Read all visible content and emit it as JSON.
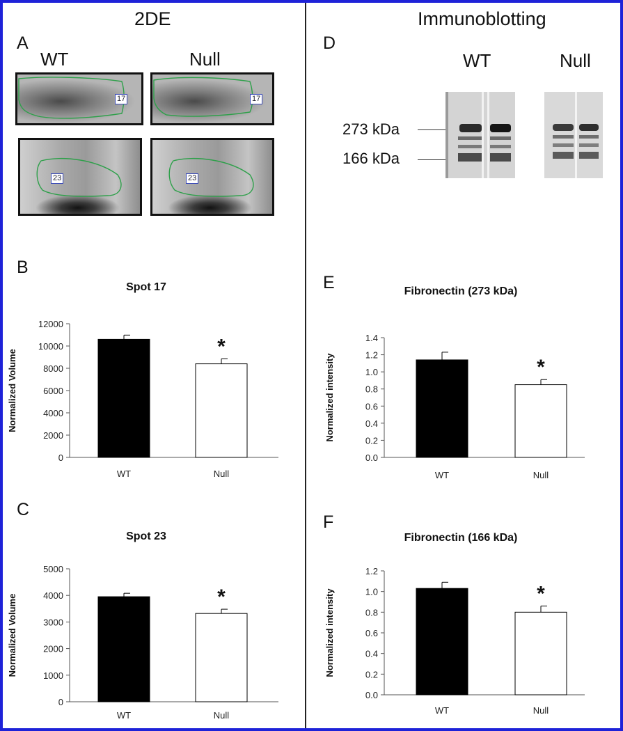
{
  "left_title": "2DE",
  "right_title": "Immunoblotting",
  "panel_labels": {
    "A": "A",
    "B": "B",
    "C": "C",
    "D": "D",
    "E": "E",
    "F": "F"
  },
  "gel_labels": {
    "wt": "WT",
    "null": "Null"
  },
  "spot_tags": {
    "spot17": "17",
    "spot23": "23"
  },
  "blot_markers": {
    "upper": "273 kDa",
    "lower": "166 kDa"
  },
  "chart_data": [
    {
      "panel": "B",
      "type": "bar",
      "title": "Spot 17",
      "ylabel": "Normalized Volume",
      "categories": [
        "WT",
        "Null"
      ],
      "values": [
        10600,
        8400
      ],
      "errors": [
        380,
        450
      ],
      "ylim": [
        0,
        12000
      ],
      "yticks": [
        0,
        2000,
        4000,
        6000,
        8000,
        10000,
        12000
      ],
      "colors": [
        "#000000",
        "#ffffff"
      ],
      "significance": [
        "",
        "*"
      ]
    },
    {
      "panel": "C",
      "type": "bar",
      "title": "Spot 23",
      "ylabel": "Normalized Volume",
      "categories": [
        "WT",
        "Null"
      ],
      "values": [
        3950,
        3320
      ],
      "errors": [
        130,
        160
      ],
      "ylim": [
        0,
        5000
      ],
      "yticks": [
        0,
        1000,
        2000,
        3000,
        4000,
        5000
      ],
      "colors": [
        "#000000",
        "#ffffff"
      ],
      "significance": [
        "",
        "*"
      ]
    },
    {
      "panel": "E",
      "type": "bar",
      "title": "Fibronectin (273 kDa)",
      "ylabel": "Normalized intensity",
      "categories": [
        "WT",
        "Null"
      ],
      "values": [
        1.14,
        0.85
      ],
      "errors": [
        0.09,
        0.06
      ],
      "ylim": [
        0,
        1.4
      ],
      "yticks": [
        "0.0",
        "0.2",
        "0.4",
        "0.6",
        "0.8",
        "1.0",
        "1.2",
        "1.4"
      ],
      "colors": [
        "#000000",
        "#ffffff"
      ],
      "significance": [
        "",
        "*"
      ]
    },
    {
      "panel": "F",
      "type": "bar",
      "title": "Fibronectin (166 kDa)",
      "ylabel": "Normalized intensity",
      "categories": [
        "WT",
        "Null"
      ],
      "values": [
        1.03,
        0.8
      ],
      "errors": [
        0.06,
        0.06
      ],
      "ylim": [
        0,
        1.2
      ],
      "yticks": [
        "0.0",
        "0.2",
        "0.4",
        "0.6",
        "0.8",
        "1.0",
        "1.2"
      ],
      "colors": [
        "#000000",
        "#ffffff"
      ],
      "significance": [
        "",
        "*"
      ]
    }
  ]
}
